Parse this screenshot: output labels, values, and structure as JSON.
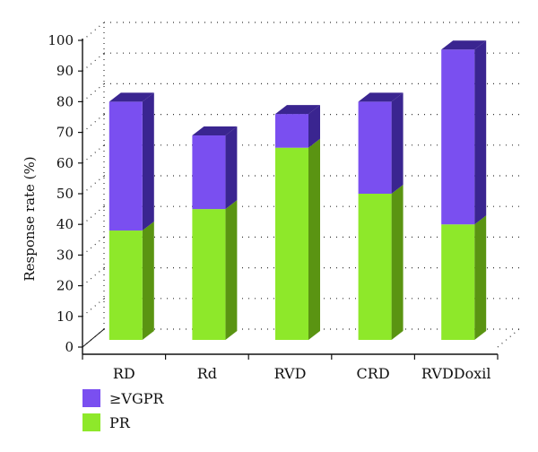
{
  "chart_data": {
    "type": "bar",
    "stacked": true,
    "three_d": true,
    "categories": [
      "RD",
      "Rd",
      "RVD",
      "CRD",
      "RVDDoxil"
    ],
    "series": [
      {
        "name": "PR",
        "values": [
          38,
          45,
          65,
          50,
          40
        ]
      },
      {
        "name": "≥VGPR",
        "values": [
          42,
          24,
          11,
          30,
          57
        ]
      }
    ],
    "ylabel": "Response rate (%)",
    "xlabel": "",
    "title": "",
    "ylim": [
      0,
      100
    ],
    "yticks": [
      0,
      10,
      20,
      30,
      40,
      50,
      60,
      70,
      80,
      90,
      100
    ],
    "grid": true,
    "legend_position": "bottom-left",
    "legend": [
      "≥VGPR",
      "PR"
    ],
    "colors": {
      "PR": {
        "front": "#8ee82a",
        "side": "#5a9412",
        "top": "#a6f04a"
      },
      "≥VGPR": {
        "front": "#7a4ff0",
        "side": "#3a2590",
        "top": "#3a2590"
      }
    }
  }
}
